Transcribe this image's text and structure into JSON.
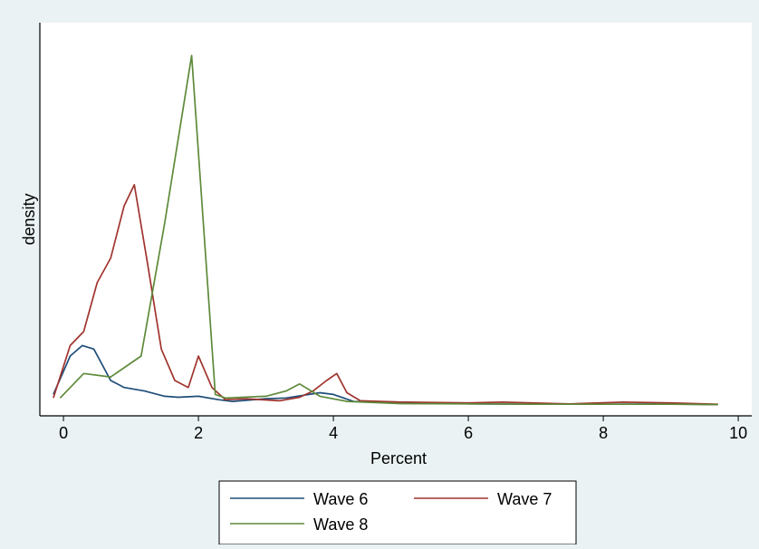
{
  "colors": {
    "background": "#eaf2f3",
    "plot_background": "#ffffff",
    "axis": "#000000"
  },
  "chart_data": {
    "type": "line",
    "xlabel": "Percent",
    "ylabel": "density",
    "xlim": [
      -0.35,
      10.2
    ],
    "ylim": [
      0,
      1.06
    ],
    "xticks": [
      0,
      2,
      4,
      6,
      8,
      10
    ],
    "yticks_shown": false,
    "grid": false,
    "legend_position": "bottom",
    "series": [
      {
        "name": "Wave 6",
        "color": "#1f4e79",
        "points": [
          [
            -0.15,
            0.03
          ],
          [
            0.1,
            0.14
          ],
          [
            0.28,
            0.17
          ],
          [
            0.45,
            0.16
          ],
          [
            0.7,
            0.07
          ],
          [
            0.9,
            0.05
          ],
          [
            1.2,
            0.04
          ],
          [
            1.5,
            0.025
          ],
          [
            1.7,
            0.022
          ],
          [
            2.0,
            0.025
          ],
          [
            2.3,
            0.015
          ],
          [
            2.5,
            0.01
          ],
          [
            3.0,
            0.018
          ],
          [
            3.3,
            0.02
          ],
          [
            3.8,
            0.035
          ],
          [
            4.0,
            0.03
          ],
          [
            4.3,
            0.01
          ],
          [
            5.0,
            0.008
          ],
          [
            6.0,
            0.003
          ],
          [
            7.0,
            0.002
          ],
          [
            8.0,
            0.002
          ],
          [
            9.0,
            0.003
          ],
          [
            9.7,
            0.001
          ]
        ]
      },
      {
        "name": "Wave 7",
        "color": "#a0342e",
        "points": [
          [
            -0.15,
            0.02
          ],
          [
            0.1,
            0.17
          ],
          [
            0.3,
            0.21
          ],
          [
            0.5,
            0.35
          ],
          [
            0.7,
            0.42
          ],
          [
            0.9,
            0.57
          ],
          [
            1.05,
            0.63
          ],
          [
            1.25,
            0.4
          ],
          [
            1.45,
            0.16
          ],
          [
            1.65,
            0.07
          ],
          [
            1.85,
            0.05
          ],
          [
            2.0,
            0.14
          ],
          [
            2.2,
            0.05
          ],
          [
            2.4,
            0.015
          ],
          [
            2.7,
            0.018
          ],
          [
            3.2,
            0.012
          ],
          [
            3.5,
            0.022
          ],
          [
            3.7,
            0.04
          ],
          [
            3.9,
            0.07
          ],
          [
            4.05,
            0.09
          ],
          [
            4.2,
            0.035
          ],
          [
            4.4,
            0.012
          ],
          [
            5.0,
            0.008
          ],
          [
            6.0,
            0.006
          ],
          [
            6.5,
            0.008
          ],
          [
            7.5,
            0.003
          ],
          [
            8.3,
            0.008
          ],
          [
            9.0,
            0.006
          ],
          [
            9.7,
            0.002
          ]
        ]
      },
      {
        "name": "Wave 8",
        "color": "#5e8a3a",
        "points": [
          [
            -0.05,
            0.02
          ],
          [
            0.3,
            0.09
          ],
          [
            0.7,
            0.08
          ],
          [
            1.15,
            0.14
          ],
          [
            1.5,
            0.52
          ],
          [
            1.9,
            1.0
          ],
          [
            2.25,
            0.03
          ],
          [
            2.4,
            0.02
          ],
          [
            3.0,
            0.025
          ],
          [
            3.3,
            0.04
          ],
          [
            3.5,
            0.06
          ],
          [
            3.8,
            0.025
          ],
          [
            4.2,
            0.01
          ],
          [
            5.0,
            0.004
          ],
          [
            6.0,
            0.003
          ],
          [
            7.0,
            0.002
          ],
          [
            8.0,
            0.002
          ],
          [
            9.0,
            0.002
          ],
          [
            9.7,
            0.001
          ]
        ]
      }
    ]
  }
}
